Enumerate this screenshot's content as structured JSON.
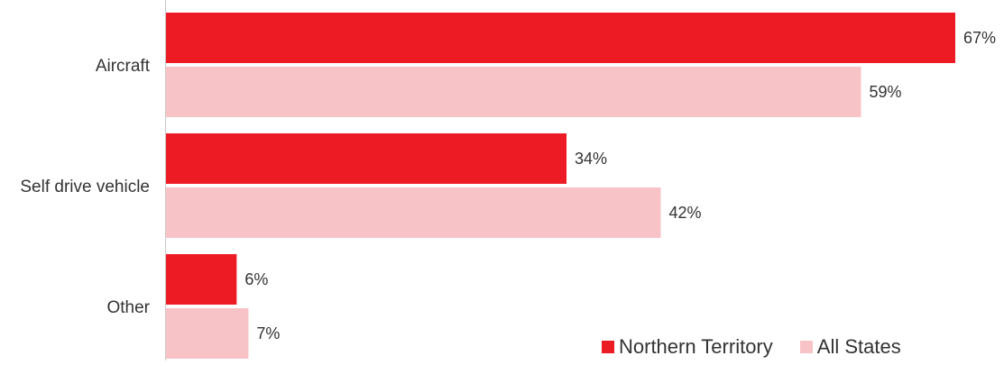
{
  "chart_data": {
    "type": "bar",
    "orientation": "horizontal",
    "categories": [
      "Aircraft",
      "Self drive vehicle",
      "Other"
    ],
    "series": [
      {
        "name": "Northern Territory",
        "values": [
          67,
          34,
          6
        ],
        "labels": [
          "67%",
          "34%",
          "6%"
        ],
        "color": "#ed1c24"
      },
      {
        "name": "All States",
        "values": [
          59,
          42,
          7
        ],
        "labels": [
          "59%",
          "42%",
          "7%"
        ],
        "color": "#f8c3c6"
      }
    ],
    "xlim": [
      0,
      67
    ],
    "unit": "%",
    "grid": false,
    "legend_position": "bottom-right"
  }
}
